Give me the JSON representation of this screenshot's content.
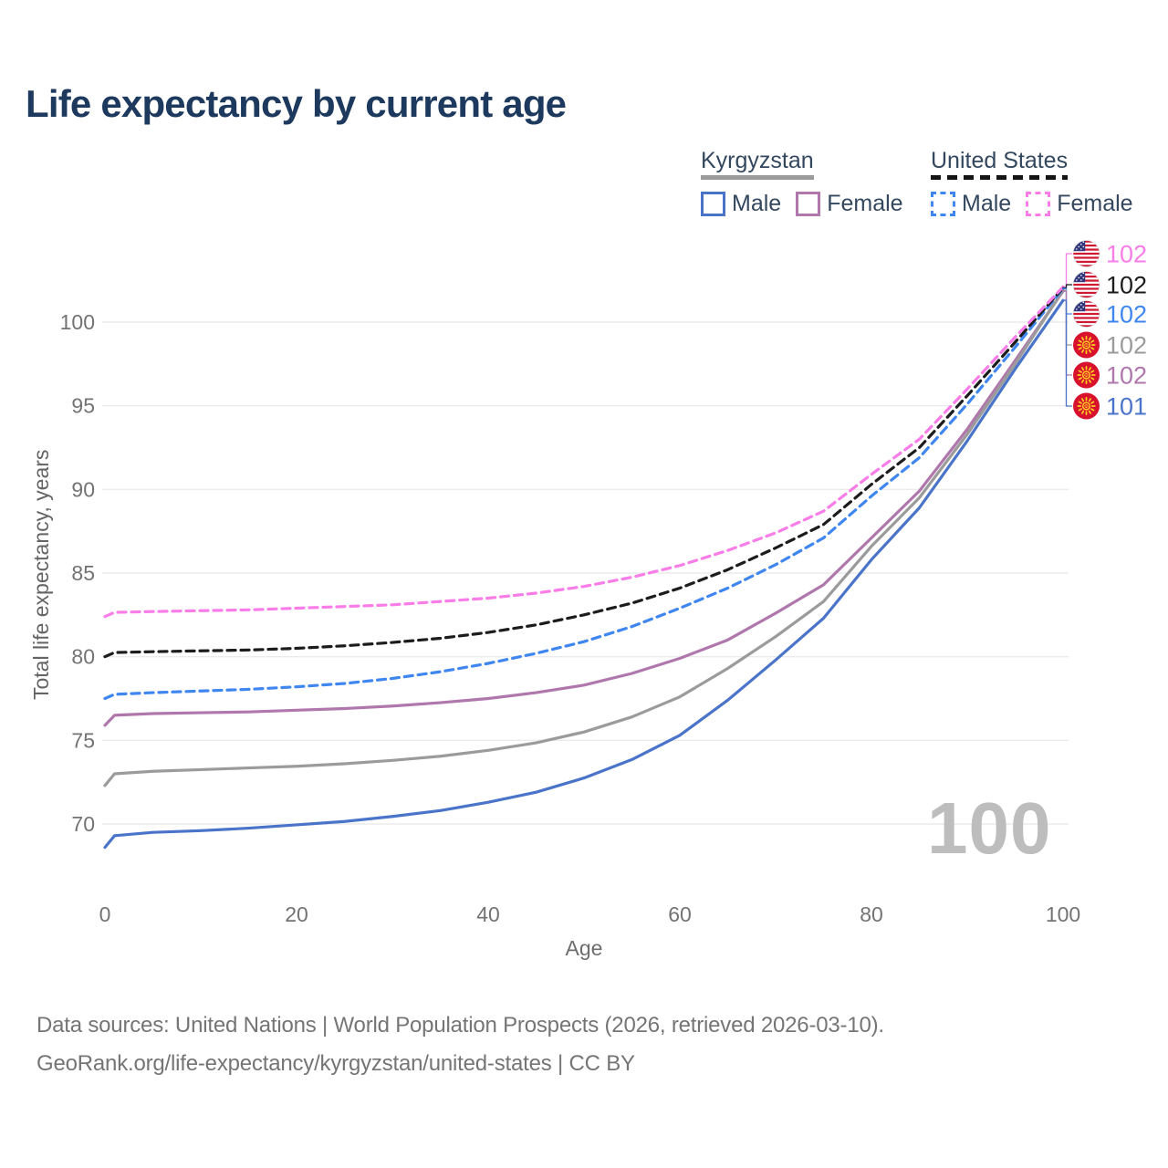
{
  "header": {
    "title": "Life expectancy by current age"
  },
  "legend": {
    "groups": [
      {
        "title": "Kyrgyzstan",
        "style": "solid",
        "underline_color": "#9b9b9b",
        "items": [
          {
            "label": "Male",
            "color": "#4a74c9"
          },
          {
            "label": "Female",
            "color": "#b077ad"
          }
        ]
      },
      {
        "title": "United States",
        "style": "dashed",
        "underline_color": "#151515",
        "items": [
          {
            "label": "Male",
            "color": "#3f86f0"
          },
          {
            "label": "Female",
            "color": "#f97de8"
          }
        ]
      }
    ]
  },
  "chart_data": {
    "type": "line",
    "title": "Life expectancy by current age",
    "xlabel": "Age",
    "ylabel": "Total life expectancy, years",
    "x_ticks": [
      0,
      20,
      40,
      60,
      80,
      100
    ],
    "y_ticks": [
      70,
      75,
      80,
      85,
      90,
      95,
      100
    ],
    "xlim": [
      0,
      100
    ],
    "ylim": [
      67,
      103
    ],
    "grid": "horizontal",
    "legend_position": "top-right",
    "watermark": "100",
    "ages": [
      0,
      1,
      5,
      10,
      15,
      20,
      25,
      30,
      35,
      40,
      45,
      50,
      55,
      60,
      65,
      70,
      75,
      80,
      85,
      90,
      95,
      100
    ],
    "series": [
      {
        "name": "United States — Female",
        "country": "United States",
        "group_label": "Female",
        "color": "#f97de8",
        "dash": true,
        "flag": "us",
        "end_label": "102",
        "values": [
          82.4,
          82.65,
          82.7,
          82.75,
          82.8,
          82.9,
          83.0,
          83.1,
          83.3,
          83.5,
          83.8,
          84.2,
          84.75,
          85.45,
          86.35,
          87.4,
          88.7,
          90.9,
          93.0,
          96.0,
          99.1,
          102.1
        ]
      },
      {
        "name": "United States — Both sexes",
        "country": "United States",
        "group_label": "United States",
        "color": "#1c1c1c",
        "dash": true,
        "flag": "us",
        "end_label": "102",
        "values": [
          80.0,
          80.25,
          80.3,
          80.35,
          80.4,
          80.5,
          80.65,
          80.85,
          81.1,
          81.45,
          81.9,
          82.5,
          83.2,
          84.1,
          85.2,
          86.5,
          87.9,
          90.3,
          92.5,
          95.6,
          98.8,
          102.05
        ]
      },
      {
        "name": "United States — Male",
        "country": "United States",
        "group_label": "Male",
        "color": "#3f86f0",
        "dash": true,
        "flag": "us",
        "end_label": "102",
        "values": [
          77.5,
          77.75,
          77.85,
          77.95,
          78.05,
          78.2,
          78.4,
          78.7,
          79.1,
          79.6,
          80.2,
          80.9,
          81.8,
          82.9,
          84.1,
          85.5,
          87.1,
          89.6,
          91.9,
          95.1,
          98.5,
          102.0
        ]
      },
      {
        "name": "Kyrgyzstan — Both sexes",
        "country": "Kyrgyzstan",
        "group_label": "Kyrgyzstan",
        "color": "#9b9b9b",
        "dash": false,
        "flag": "kg",
        "end_label": "102",
        "values": [
          72.3,
          73.0,
          73.15,
          73.25,
          73.35,
          73.45,
          73.6,
          73.8,
          74.05,
          74.4,
          74.85,
          75.5,
          76.4,
          77.6,
          79.3,
          81.2,
          83.3,
          86.6,
          89.5,
          93.3,
          97.5,
          101.9
        ]
      },
      {
        "name": "Kyrgyzstan — Female",
        "country": "Kyrgyzstan",
        "group_label": "Female",
        "color": "#b077ad",
        "dash": false,
        "flag": "kg",
        "end_label": "102",
        "values": [
          75.9,
          76.5,
          76.6,
          76.65,
          76.7,
          76.8,
          76.9,
          77.05,
          77.25,
          77.5,
          77.85,
          78.3,
          79.0,
          79.9,
          81.0,
          82.6,
          84.3,
          87.1,
          89.9,
          93.6,
          97.7,
          101.85
        ]
      },
      {
        "name": "Kyrgyzstan — Male",
        "country": "Kyrgyzstan",
        "group_label": "Male",
        "color": "#4a74c9",
        "dash": false,
        "flag": "kg",
        "end_label": "101",
        "values": [
          68.6,
          69.3,
          69.5,
          69.6,
          69.75,
          69.95,
          70.15,
          70.45,
          70.8,
          71.3,
          71.9,
          72.75,
          73.85,
          75.3,
          77.4,
          79.8,
          82.3,
          85.8,
          88.9,
          92.9,
          97.2,
          101.3
        ]
      }
    ]
  },
  "footer": {
    "line1": "Data sources: United Nations | World Population Prospects (2026, retrieved 2026-03-10).",
    "line2": "GeoRank.org/life-expectancy/kyrgyzstan/united-states | CC BY"
  }
}
